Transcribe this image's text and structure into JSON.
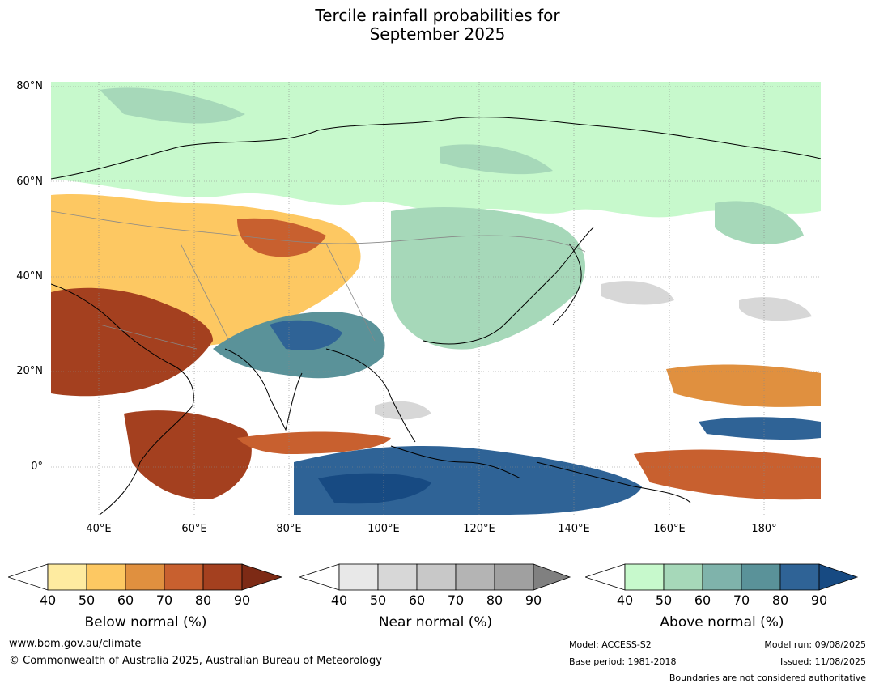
{
  "title_line1": "Tercile rainfall probabilities for",
  "title_line2": "September 2025",
  "map": {
    "lat_labels": [
      "80°N",
      "60°N",
      "40°N",
      "20°N",
      "0°"
    ],
    "lon_labels": [
      "40°E",
      "60°E",
      "80°E",
      "100°E",
      "120°E",
      "140°E",
      "160°E",
      "180°"
    ],
    "lon_range": [
      30,
      191
    ],
    "lat_range": [
      -10,
      81
    ]
  },
  "colorbars": [
    {
      "title": "Below normal (%)",
      "ticks": [
        "40",
        "50",
        "60",
        "70",
        "80",
        "90"
      ],
      "colors": [
        "#ffffff",
        "#feeba0",
        "#fdc862",
        "#e0903f",
        "#c8602f",
        "#a4401f",
        "#7d2a15"
      ]
    },
    {
      "title": "Near normal (%)",
      "ticks": [
        "40",
        "50",
        "60",
        "70",
        "80",
        "90"
      ],
      "colors": [
        "#ffffff",
        "#e8e8e8",
        "#d7d7d7",
        "#c8c8c8",
        "#b4b4b4",
        "#a0a0a0",
        "#808080"
      ]
    },
    {
      "title": "Above normal (%)",
      "ticks": [
        "40",
        "50",
        "60",
        "70",
        "80",
        "90"
      ],
      "colors": [
        "#ffffff",
        "#c7f9cc",
        "#a6d8b9",
        "#7fb3ab",
        "#5a9299",
        "#2f6396",
        "#174a82"
      ]
    }
  ],
  "footer": {
    "website": "www.bom.gov.au/climate",
    "copyright": "© Commonwealth of Australia 2025, Australian Bureau of Meteorology",
    "model": "Model: ACCESS-S2",
    "base_period": "Base period: 1981-2018",
    "model_run": "Model run: 09/08/2025",
    "issued": "Issued: 11/08/2025",
    "boundaries": "Boundaries are not considered authoritative"
  }
}
